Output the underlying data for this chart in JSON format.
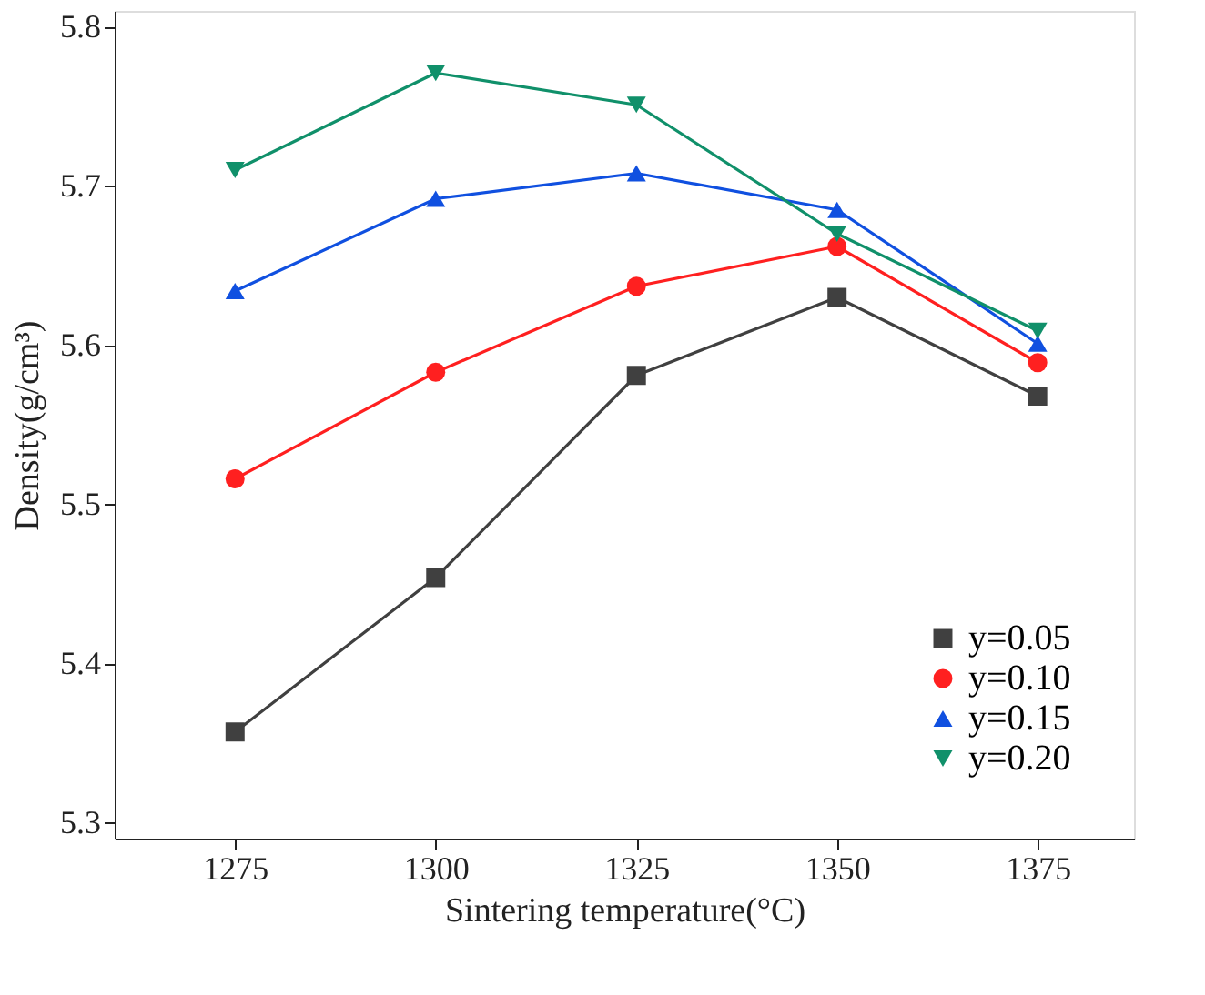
{
  "chart_data": {
    "type": "line",
    "xlabel": "Sintering temperature(°C)",
    "ylabel": "Density(g/cm³)",
    "x": [
      1275,
      1300,
      1325,
      1350,
      1375
    ],
    "series": [
      {
        "name": "y=0.05",
        "color": "#404040",
        "marker": "square",
        "values": [
          5.357,
          5.454,
          5.581,
          5.63,
          5.568
        ]
      },
      {
        "name": "y=0.10",
        "color": "#ff2020",
        "marker": "circle",
        "values": [
          5.516,
          5.583,
          5.637,
          5.662,
          5.589
        ]
      },
      {
        "name": "y=0.15",
        "color": "#1050e0",
        "marker": "triangle",
        "values": [
          5.634,
          5.692,
          5.708,
          5.685,
          5.601
        ]
      },
      {
        "name": "y=0.20",
        "color": "#10906a",
        "marker": "triangle-down",
        "values": [
          5.71,
          5.771,
          5.751,
          5.67,
          5.609
        ]
      }
    ],
    "xlim": [
      1260,
      1387
    ],
    "xticks": [
      1275,
      1300,
      1325,
      1350,
      1375
    ],
    "ylim": [
      5.29,
      5.81
    ],
    "yticks": [
      5.3,
      5.4,
      5.5,
      5.6,
      5.7,
      5.8
    ],
    "grid": false,
    "legend": "bottom right",
    "line_style": "solid"
  }
}
